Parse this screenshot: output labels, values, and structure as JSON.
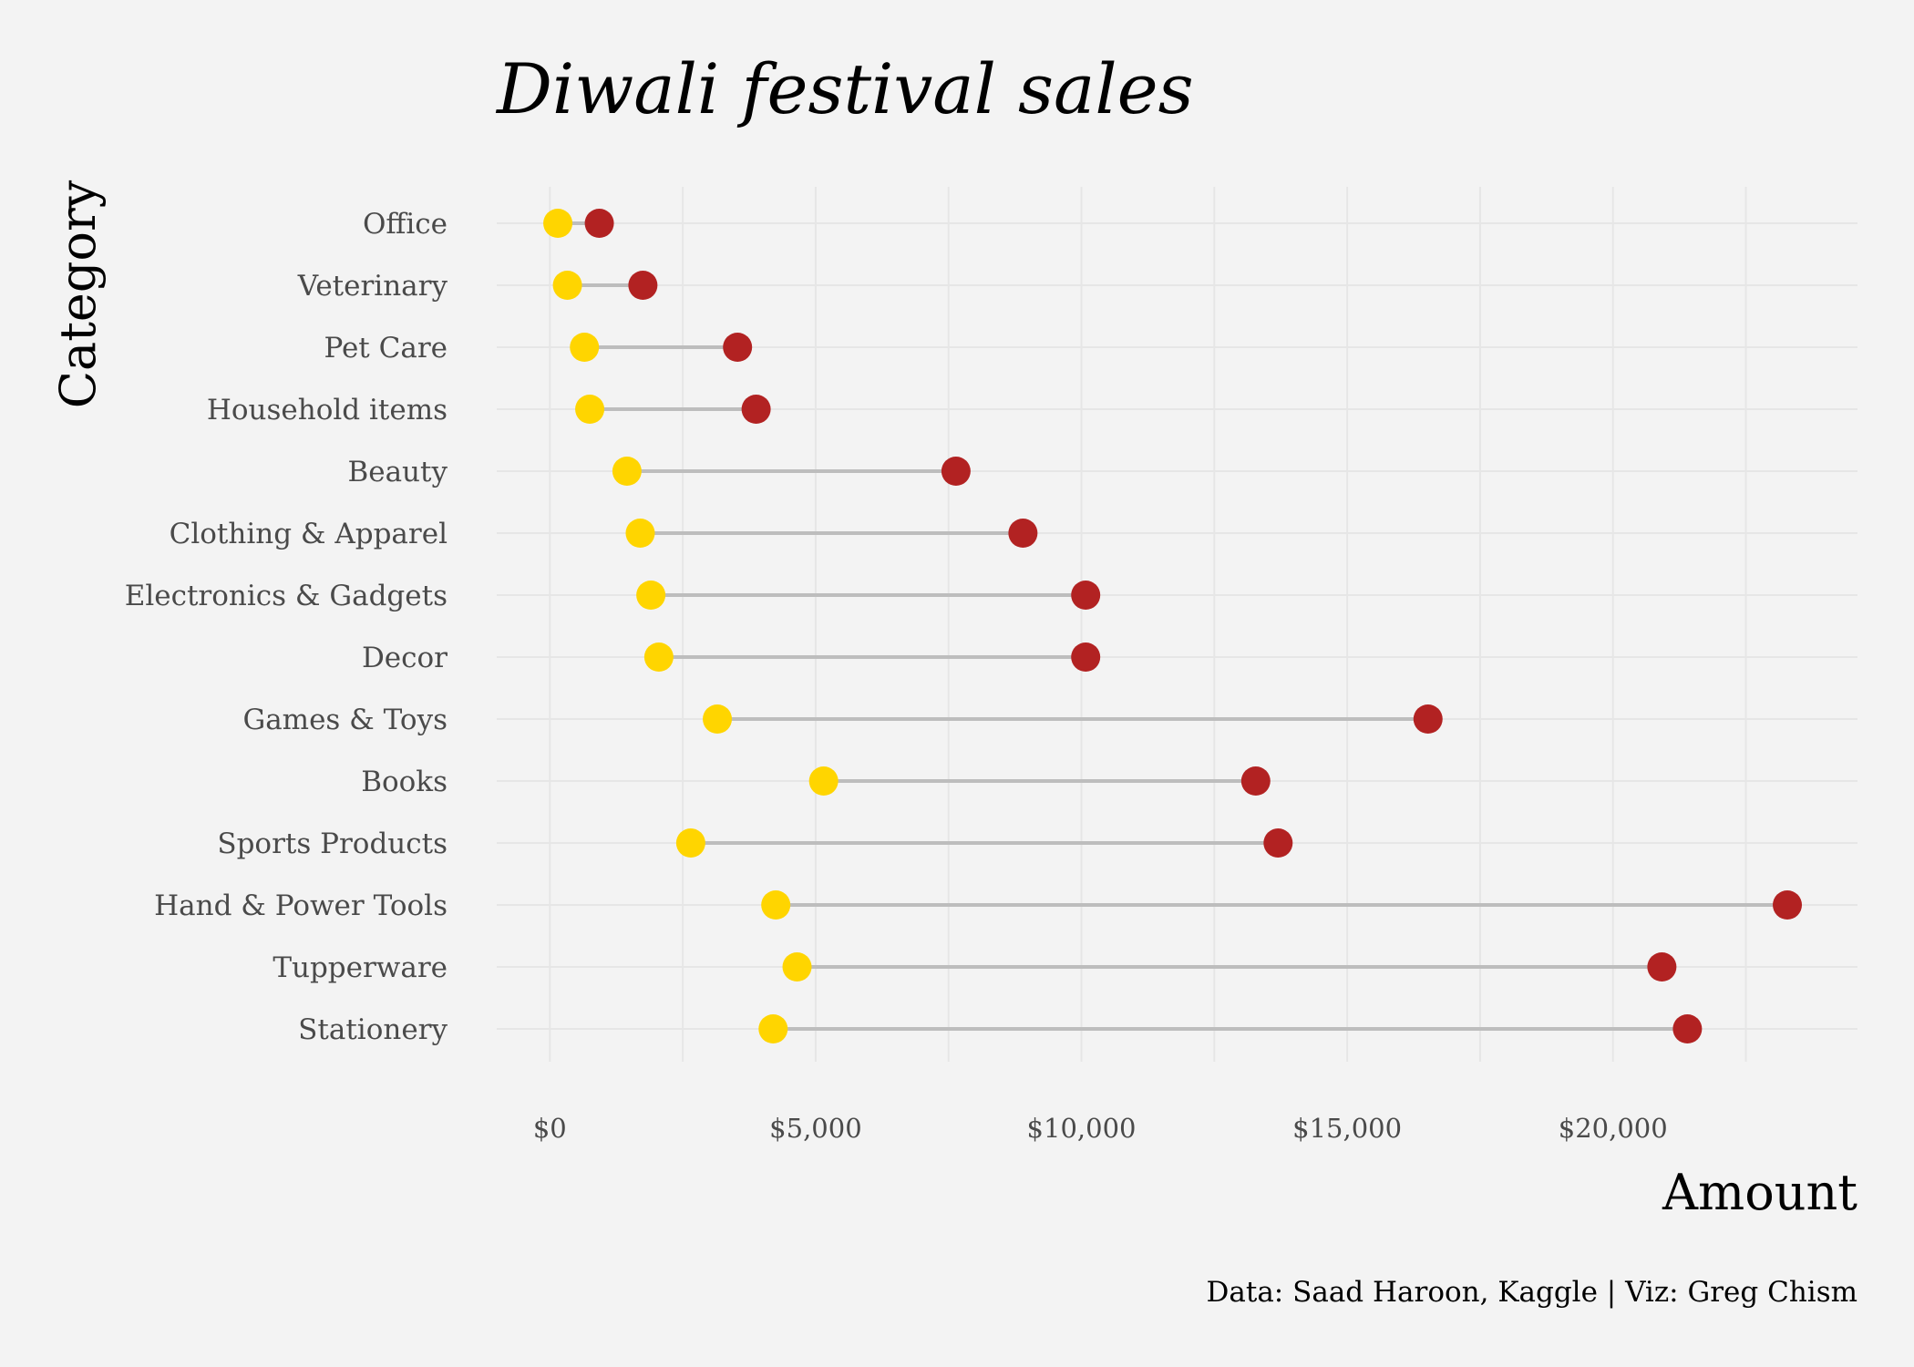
{
  "chart_data": {
    "type": "dumbbell",
    "title": "Diwali festival sales",
    "xlabel": "Amount",
    "ylabel": "Category",
    "caption": "Data: Saad Haroon, Kaggle | Viz: Greg Chism",
    "xlim": [
      -1000,
      24600
    ],
    "xticks": [
      0,
      5000,
      10000,
      15000,
      20000
    ],
    "xtick_labels": [
      "$0",
      "$5,000",
      "$10,000",
      "$15,000",
      "$20,000"
    ],
    "grid": true,
    "legend": "none",
    "colors": {
      "low": "#ffd500",
      "high": "#b22222",
      "segment": "#bdbdbd",
      "background": "#f3f3f3"
    },
    "categories": [
      "Office",
      "Veterinary",
      "Pet Care",
      "Household items",
      "Beauty",
      "Clothing & Apparel",
      "Electronics & Gadgets",
      "Decor",
      "Games & Toys",
      "Books",
      "Sports Products",
      "Hand & Power Tools",
      "Tupperware",
      "Stationery"
    ],
    "series": [
      {
        "role": "low",
        "values": [
          150,
          330,
          650,
          750,
          1450,
          1700,
          1900,
          2050,
          3150,
          5150,
          2650,
          4250,
          4650,
          4200
        ]
      },
      {
        "role": "high",
        "values": [
          930,
          1750,
          3530,
          3880,
          7640,
          8900,
          10080,
          10080,
          16520,
          13280,
          13700,
          23280,
          20920,
          21400
        ]
      }
    ]
  }
}
